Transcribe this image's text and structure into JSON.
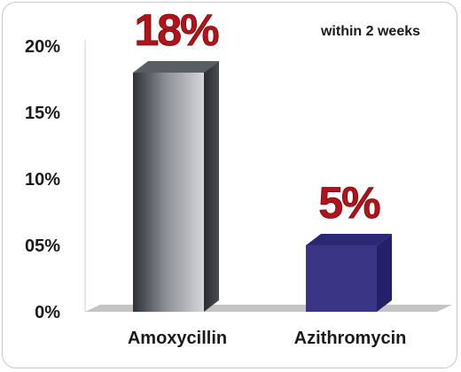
{
  "chart_data": {
    "type": "bar",
    "categories": [
      "Amoxycillin",
      "Azithromycin"
    ],
    "values": [
      18,
      5
    ],
    "data_labels": [
      "18%",
      "5%"
    ],
    "ylim": [
      0,
      20
    ],
    "yticks": [
      0,
      5,
      10,
      15,
      20
    ],
    "ytick_labels": [
      "0%",
      "05%",
      "10%",
      "15%",
      "20%"
    ],
    "annotation": "within 2 weeks",
    "grid": false,
    "colors": {
      "amoxycillin_bar": "#7d8086",
      "azithromycin_bar": "#3a3585",
      "data_label": "#b3121a",
      "floor": "#c4c4c4"
    }
  }
}
